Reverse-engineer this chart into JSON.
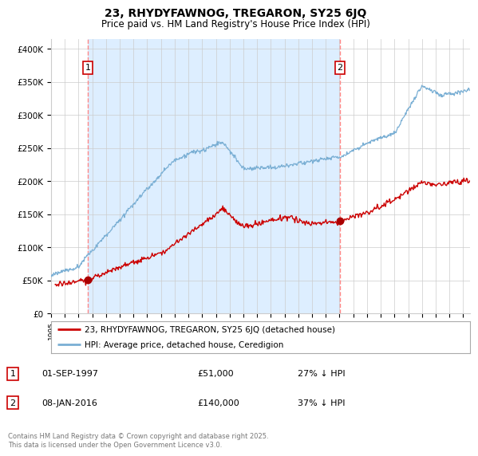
{
  "title": "23, RHYDYFAWNOG, TREGARON, SY25 6JQ",
  "subtitle": "Price paid vs. HM Land Registry's House Price Index (HPI)",
  "ylabel_ticks": [
    "£0",
    "£50K",
    "£100K",
    "£150K",
    "£200K",
    "£250K",
    "£300K",
    "£350K",
    "£400K"
  ],
  "ytick_values": [
    0,
    50000,
    100000,
    150000,
    200000,
    250000,
    300000,
    350000,
    400000
  ],
  "ylim": [
    0,
    415000
  ],
  "xlim_start": 1995.0,
  "xlim_end": 2025.5,
  "sale1_date": 1997.67,
  "sale1_price": 51000,
  "sale1_label": "1",
  "sale2_date": 2016.03,
  "sale2_price": 140000,
  "sale2_label": "2",
  "legend_label_red": "23, RHYDYFAWNOG, TREGARON, SY25 6JQ (detached house)",
  "legend_label_blue": "HPI: Average price, detached house, Ceredigion",
  "footer": "Contains HM Land Registry data © Crown copyright and database right 2025.\nThis data is licensed under the Open Government Licence v3.0.",
  "line_color_red": "#cc0000",
  "line_color_blue": "#7aafd4",
  "marker_color_red": "#aa0000",
  "vline_color": "#ff8888",
  "shade_color": "#ddeeff",
  "background_color": "#ffffff",
  "grid_color": "#cccccc",
  "title_fontsize": 10,
  "subtitle_fontsize": 8.5
}
